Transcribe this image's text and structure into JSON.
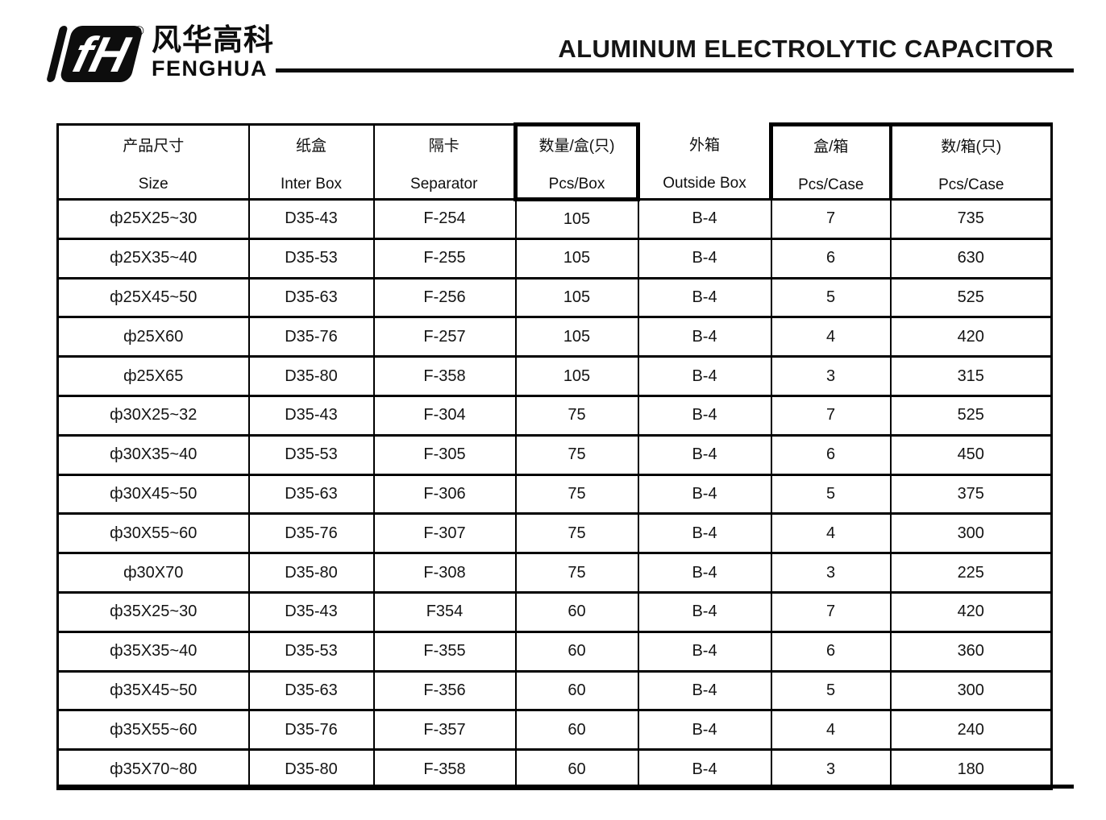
{
  "brand": {
    "name_cn": "风华高科",
    "name_en": "FENGHUA",
    "registered_mark": "®",
    "logo_monogram": "fH"
  },
  "title": "ALUMINUM ELECTROLYTIC CAPACITOR",
  "table": {
    "columns": [
      {
        "cn": "产品尺寸",
        "en": "Size"
      },
      {
        "cn": "纸盒",
        "en": "Inter Box"
      },
      {
        "cn": "隔卡",
        "en": "Separator"
      },
      {
        "cn": "数量/盒(只)",
        "en": "Pcs/Box"
      },
      {
        "cn": "外箱",
        "en": "Outside Box"
      },
      {
        "cn": "盒/箱",
        "en": "Pcs/Case"
      },
      {
        "cn": "数/箱(只)",
        "en": "Pcs/Case"
      }
    ],
    "rows": [
      [
        "ф25X25~30",
        "D35-43",
        "F-254",
        "105",
        "B-4",
        "7",
        "735"
      ],
      [
        "ф25X35~40",
        "D35-53",
        "F-255",
        "105",
        "B-4",
        "6",
        "630"
      ],
      [
        "ф25X45~50",
        "D35-63",
        "F-256",
        "105",
        "B-4",
        "5",
        "525"
      ],
      [
        "ф25X60",
        "D35-76",
        "F-257",
        "105",
        "B-4",
        "4",
        "420"
      ],
      [
        "ф25X65",
        "D35-80",
        "F-358",
        "105",
        "B-4",
        "3",
        "315"
      ],
      [
        "ф30X25~32",
        "D35-43",
        "F-304",
        "75",
        "B-4",
        "7",
        "525"
      ],
      [
        "ф30X35~40",
        "D35-53",
        "F-305",
        "75",
        "B-4",
        "6",
        "450"
      ],
      [
        "ф30X45~50",
        "D35-63",
        "F-306",
        "75",
        "B-4",
        "5",
        "375"
      ],
      [
        "ф30X55~60",
        "D35-76",
        "F-307",
        "75",
        "B-4",
        "4",
        "300"
      ],
      [
        "ф30X70",
        "D35-80",
        "F-308",
        "75",
        "B-4",
        "3",
        "225"
      ],
      [
        "ф35X25~30",
        "D35-43",
        "F354",
        "60",
        "B-4",
        "7",
        "420"
      ],
      [
        "ф35X35~40",
        "D35-53",
        "F-355",
        "60",
        "B-4",
        "6",
        "360"
      ],
      [
        "ф35X45~50",
        "D35-63",
        "F-356",
        "60",
        "B-4",
        "5",
        "300"
      ],
      [
        "ф35X55~60",
        "D35-76",
        "F-357",
        "60",
        "B-4",
        "4",
        "240"
      ],
      [
        "ф35X70~80",
        "D35-80",
        "F-358",
        "60",
        "B-4",
        "3",
        "180"
      ]
    ]
  }
}
